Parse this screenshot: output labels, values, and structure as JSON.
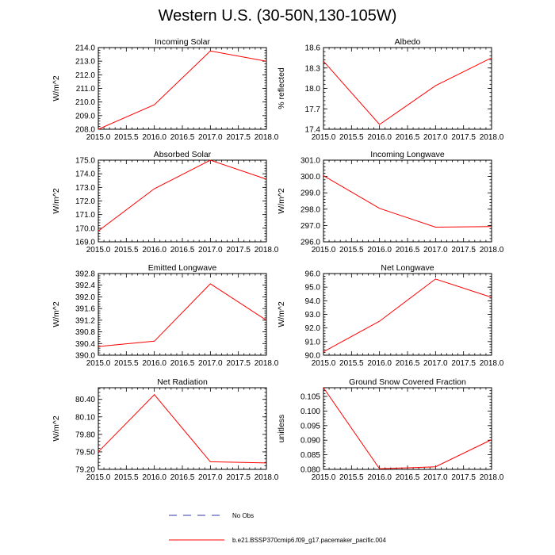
{
  "figure": {
    "title": "Western U.S. (30-50N,130-105W)",
    "legend": [
      {
        "label": "No Obs",
        "color": "#3333aa",
        "style": "dashed"
      },
      {
        "label": "b.e21.BSSP370cmip6.f09_g17.pacemaker_pacific.004",
        "color": "#ff0000",
        "style": "solid"
      }
    ]
  },
  "chart_data": [
    {
      "type": "line",
      "title": "Incoming Solar",
      "xlabel": "",
      "ylabel": "W/m^2",
      "x": [
        2015,
        2016,
        2017,
        2018
      ],
      "values": [
        208.0,
        209.8,
        213.75,
        213.0
      ],
      "xlim": [
        2015,
        2018
      ],
      "ylim": [
        208.0,
        214.0
      ],
      "xticks": [
        "2015.0",
        "2015.5",
        "2016.0",
        "2016.5",
        "2017.0",
        "2017.5",
        "2018.0"
      ],
      "yticks": [
        "208.0",
        "209.0",
        "210.0",
        "211.0",
        "212.0",
        "213.0",
        "214.0"
      ],
      "ytick_values": [
        208,
        209,
        210,
        211,
        212,
        213,
        214
      ],
      "series_color": "#ff0000"
    },
    {
      "type": "line",
      "title": "Albedo",
      "xlabel": "",
      "ylabel": "% reflected",
      "x": [
        2015,
        2016,
        2017,
        2018
      ],
      "values": [
        18.4,
        17.47,
        18.04,
        18.45
      ],
      "xlim": [
        2015,
        2018
      ],
      "ylim": [
        17.4,
        18.6
      ],
      "xticks": [
        "2015.0",
        "2015.5",
        "2016.0",
        "2016.5",
        "2017.0",
        "2017.5",
        "2018.0"
      ],
      "yticks": [
        "17.4",
        "17.7",
        "18.0",
        "18.3",
        "18.6"
      ],
      "ytick_values": [
        17.4,
        17.7,
        18.0,
        18.3,
        18.6
      ],
      "series_color": "#ff0000"
    },
    {
      "type": "line",
      "title": "Absorbed Solar",
      "xlabel": "",
      "ylabel": "W/m^2",
      "x": [
        2015,
        2016,
        2017,
        2018
      ],
      "values": [
        169.8,
        172.9,
        175.0,
        173.6
      ],
      "xlim": [
        2015,
        2018
      ],
      "ylim": [
        169.0,
        175.0
      ],
      "xticks": [
        "2015.0",
        "2015.5",
        "2016.0",
        "2016.5",
        "2017.0",
        "2017.5",
        "2018.0"
      ],
      "yticks": [
        "169.0",
        "170.0",
        "171.0",
        "172.0",
        "173.0",
        "174.0",
        "175.0"
      ],
      "ytick_values": [
        169,
        170,
        171,
        172,
        173,
        174,
        175
      ],
      "series_color": "#ff0000"
    },
    {
      "type": "line",
      "title": "Incoming Longwave",
      "xlabel": "",
      "ylabel": "W/m^2",
      "x": [
        2015,
        2016,
        2017,
        2018
      ],
      "values": [
        300.05,
        298.05,
        296.9,
        296.93
      ],
      "xlim": [
        2015,
        2018
      ],
      "ylim": [
        296.0,
        301.0
      ],
      "xticks": [
        "2015.0",
        "2015.5",
        "2016.0",
        "2016.5",
        "2017.0",
        "2017.5",
        "2018.0"
      ],
      "yticks": [
        "296.0",
        "297.0",
        "298.0",
        "299.0",
        "300.0",
        "301.0"
      ],
      "ytick_values": [
        296,
        297,
        298,
        299,
        300,
        301
      ],
      "series_color": "#ff0000"
    },
    {
      "type": "line",
      "title": "Emitted Longwave",
      "xlabel": "",
      "ylabel": "W/m^2",
      "x": [
        2015,
        2016,
        2017,
        2018
      ],
      "values": [
        390.3,
        390.48,
        392.45,
        391.2
      ],
      "xlim": [
        2015,
        2018
      ],
      "ylim": [
        390.0,
        392.8
      ],
      "xticks": [
        "2015.0",
        "2015.5",
        "2016.0",
        "2016.5",
        "2017.0",
        "2017.5",
        "2018.0"
      ],
      "yticks": [
        "390.0",
        "390.4",
        "390.8",
        "391.2",
        "391.6",
        "392.0",
        "392.4",
        "392.8"
      ],
      "ytick_values": [
        390.0,
        390.4,
        390.8,
        391.2,
        391.6,
        392.0,
        392.4,
        392.8
      ],
      "series_color": "#ff0000"
    },
    {
      "type": "line",
      "title": "Net Longwave",
      "xlabel": "",
      "ylabel": "W/m^2",
      "x": [
        2015,
        2016,
        2017,
        2018
      ],
      "values": [
        90.25,
        92.5,
        95.6,
        94.25
      ],
      "xlim": [
        2015,
        2018
      ],
      "ylim": [
        90.0,
        96.0
      ],
      "xticks": [
        "2015.0",
        "2015.5",
        "2016.0",
        "2016.5",
        "2017.0",
        "2017.5",
        "2018.0"
      ],
      "yticks": [
        "90.0",
        "91.0",
        "92.0",
        "93.0",
        "94.0",
        "95.0",
        "96.0"
      ],
      "ytick_values": [
        90,
        91,
        92,
        93,
        94,
        95,
        96
      ],
      "series_color": "#ff0000"
    },
    {
      "type": "line",
      "title": "Net Radiation",
      "xlabel": "",
      "ylabel": "W/m^2",
      "x": [
        2015,
        2016,
        2017,
        2018
      ],
      "values": [
        79.5,
        80.48,
        79.33,
        79.31
      ],
      "xlim": [
        2015,
        2018
      ],
      "ylim": [
        79.2,
        80.6
      ],
      "xticks": [
        "2015.0",
        "2015.5",
        "2016.0",
        "2016.5",
        "2017.0",
        "2017.5",
        "2018.0"
      ],
      "yticks": [
        "79.20",
        "79.50",
        "79.80",
        "80.10",
        "80.40"
      ],
      "ytick_values": [
        79.2,
        79.5,
        79.8,
        80.1,
        80.4
      ],
      "series_color": "#ff0000"
    },
    {
      "type": "line",
      "title": "Ground Snow Covered Fraction",
      "xlabel": "",
      "ylabel": "unitless",
      "x": [
        2015,
        2016,
        2017,
        2018
      ],
      "values": [
        0.108,
        0.0802,
        0.0809,
        0.0902
      ],
      "xlim": [
        2015,
        2018
      ],
      "ylim": [
        0.08,
        0.108
      ],
      "xticks": [
        "2015.0",
        "2015.5",
        "2016.0",
        "2016.5",
        "2017.0",
        "2017.5",
        "2018.0"
      ],
      "yticks": [
        "0.080",
        "0.085",
        "0.090",
        "0.095",
        "0.100",
        "0.105"
      ],
      "ytick_values": [
        0.08,
        0.085,
        0.09,
        0.095,
        0.1,
        0.105
      ],
      "series_color": "#ff0000"
    }
  ]
}
